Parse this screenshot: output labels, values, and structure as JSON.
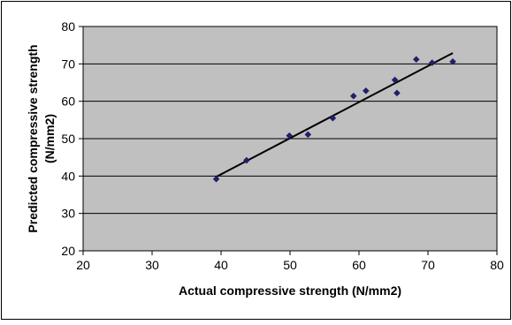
{
  "chart_data": {
    "type": "scatter",
    "title": "",
    "xlabel": "Actual compressive strength (N/mm2)",
    "ylabel_line1": "Predicted compressive strength",
    "ylabel_line2": "(N/mm2)",
    "xlim": [
      20,
      80
    ],
    "ylim": [
      20,
      80
    ],
    "x_ticks": [
      "20",
      "30",
      "40",
      "50",
      "60",
      "70",
      "80"
    ],
    "y_ticks": [
      "20",
      "30",
      "40",
      "50",
      "60",
      "70",
      "80"
    ],
    "grid": "horizontal",
    "legend": "none",
    "series": [
      {
        "points": [
          [
            39.3,
            39.2
          ],
          [
            43.7,
            44.2
          ],
          [
            49.9,
            50.8
          ],
          [
            52.6,
            51.1
          ],
          [
            56.2,
            55.5
          ],
          [
            59.2,
            61.4
          ],
          [
            61.0,
            62.8
          ],
          [
            65.2,
            65.7
          ],
          [
            65.5,
            62.2
          ],
          [
            68.3,
            71.2
          ],
          [
            70.6,
            70.3
          ],
          [
            73.6,
            70.6
          ]
        ],
        "color": "#1f1f6b"
      }
    ],
    "trendline": {
      "from": [
        39.3,
        39.8
      ],
      "to": [
        73.6,
        72.9
      ],
      "color": "#000000"
    },
    "colors": {
      "plot_background": "#c0c0c0",
      "gridline": "#000000",
      "frame": "#000000"
    }
  }
}
